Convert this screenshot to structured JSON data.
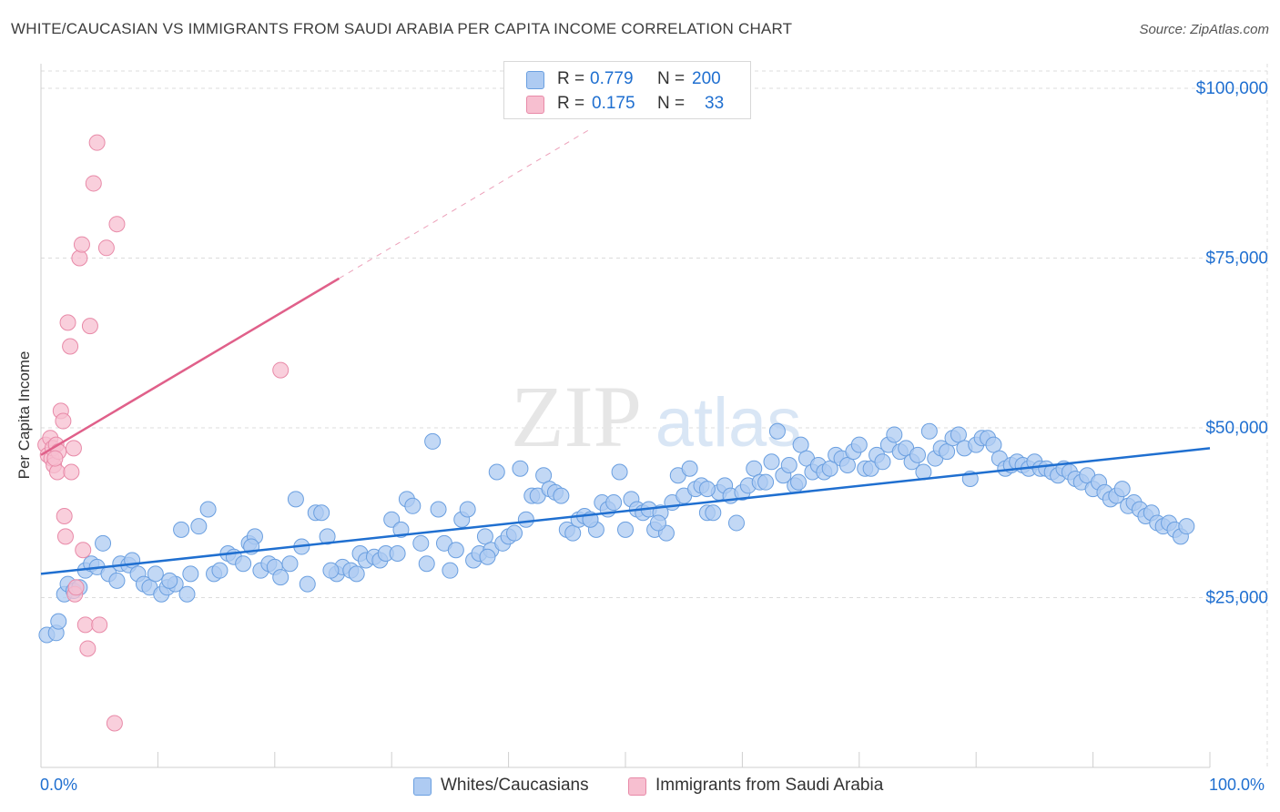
{
  "title": "WHITE/CAUCASIAN VS IMMIGRANTS FROM SAUDI ARABIA PER CAPITA INCOME CORRELATION CHART",
  "source": "Source: ZipAtlas.com",
  "watermark": {
    "zip": "ZIP",
    "atlas": "atlas"
  },
  "legend": {
    "series1": {
      "r_label": "R =",
      "r_value": "0.779",
      "n_label": "N =",
      "n_value": "200"
    },
    "series2": {
      "r_label": "R =",
      "r_value": "0.175",
      "n_label": "N =",
      "n_value": "33"
    }
  },
  "bottom_legend": {
    "series1": "Whites/Caucasians",
    "series2": "Immigrants from Saudi Arabia"
  },
  "colors": {
    "blue_fill": "#aecbf2",
    "blue_stroke": "#6a9fe0",
    "blue_line": "#1f6fd0",
    "pink_fill": "#f7bfd0",
    "pink_stroke": "#e88aa8",
    "pink_line": "#e0608a",
    "axis_text": "#1f6fd0",
    "grid": "#dcdcdc"
  },
  "chart_data": {
    "type": "scatter",
    "title": "WHITE/CAUCASIAN VS IMMIGRANTS FROM SAUDI ARABIA PER CAPITA INCOME CORRELATION CHART",
    "xlabel": "",
    "ylabel": "Per Capita Income",
    "xlim": [
      0,
      100
    ],
    "ylim": [
      0,
      105000
    ],
    "x_tick_labels": [
      "0.0%",
      "100.0%"
    ],
    "y_ticks": [
      25000,
      50000,
      75000,
      100000
    ],
    "y_tick_labels": [
      "$25,000",
      "$50,000",
      "$75,000",
      "$100,000"
    ],
    "grid": true,
    "series": [
      {
        "name": "Whites/Caucasians",
        "color": "#aecbf2",
        "trend": {
          "x0": 0,
          "y0": 28500,
          "x1": 100,
          "y1": 47000
        },
        "points": [
          [
            0.5,
            19500
          ],
          [
            1.3,
            19800
          ],
          [
            1.5,
            21500
          ],
          [
            2.0,
            25500
          ],
          [
            2.3,
            27000
          ],
          [
            2.8,
            26000
          ],
          [
            3.3,
            26500
          ],
          [
            3.8,
            29000
          ],
          [
            4.3,
            30000
          ],
          [
            4.8,
            29500
          ],
          [
            5.3,
            33000
          ],
          [
            5.8,
            28500
          ],
          [
            6.5,
            27500
          ],
          [
            6.8,
            30000
          ],
          [
            7.5,
            29800
          ],
          [
            7.8,
            30500
          ],
          [
            8.3,
            28500
          ],
          [
            8.8,
            27000
          ],
          [
            9.3,
            26500
          ],
          [
            9.8,
            28500
          ],
          [
            10.3,
            25500
          ],
          [
            10.8,
            26500
          ],
          [
            11.5,
            27000
          ],
          [
            12.0,
            35000
          ],
          [
            12.5,
            25500
          ],
          [
            12.8,
            28500
          ],
          [
            13.5,
            35500
          ],
          [
            14.3,
            38000
          ],
          [
            14.8,
            28500
          ],
          [
            15.3,
            29000
          ],
          [
            16.0,
            31500
          ],
          [
            16.5,
            31000
          ],
          [
            17.3,
            30000
          ],
          [
            17.8,
            33000
          ],
          [
            18.3,
            34000
          ],
          [
            18.8,
            29000
          ],
          [
            19.5,
            30000
          ],
          [
            20.0,
            29500
          ],
          [
            20.5,
            28000
          ],
          [
            21.3,
            30000
          ],
          [
            21.8,
            39500
          ],
          [
            22.3,
            32500
          ],
          [
            22.8,
            27000
          ],
          [
            23.5,
            37500
          ],
          [
            24.0,
            37500
          ],
          [
            24.5,
            34000
          ],
          [
            25.3,
            28500
          ],
          [
            25.8,
            29500
          ],
          [
            26.5,
            29000
          ],
          [
            27.0,
            28500
          ],
          [
            27.3,
            31500
          ],
          [
            27.8,
            30500
          ],
          [
            28.5,
            31000
          ],
          [
            29.0,
            30500
          ],
          [
            29.5,
            31500
          ],
          [
            30.0,
            36500
          ],
          [
            30.8,
            35000
          ],
          [
            31.3,
            39500
          ],
          [
            31.8,
            38500
          ],
          [
            32.5,
            33000
          ],
          [
            33.0,
            30000
          ],
          [
            33.5,
            48000
          ],
          [
            34.0,
            38000
          ],
          [
            34.5,
            33000
          ],
          [
            35.0,
            29000
          ],
          [
            35.5,
            32000
          ],
          [
            36.0,
            36500
          ],
          [
            36.5,
            38000
          ],
          [
            37.0,
            30500
          ],
          [
            37.5,
            31500
          ],
          [
            38.0,
            34000
          ],
          [
            38.5,
            32000
          ],
          [
            39.0,
            43500
          ],
          [
            39.5,
            33000
          ],
          [
            40.0,
            34000
          ],
          [
            40.5,
            34500
          ],
          [
            41.0,
            44000
          ],
          [
            41.5,
            36500
          ],
          [
            42.0,
            40000
          ],
          [
            42.5,
            40000
          ],
          [
            43.0,
            43000
          ],
          [
            43.5,
            41000
          ],
          [
            44.0,
            40500
          ],
          [
            44.5,
            40000
          ],
          [
            45.0,
            35000
          ],
          [
            45.5,
            34500
          ],
          [
            46.0,
            36500
          ],
          [
            46.5,
            37000
          ],
          [
            47.0,
            36500
          ],
          [
            47.5,
            35000
          ],
          [
            48.0,
            39000
          ],
          [
            48.5,
            38000
          ],
          [
            49.0,
            39000
          ],
          [
            49.5,
            43500
          ],
          [
            50.0,
            35000
          ],
          [
            50.5,
            39500
          ],
          [
            51.0,
            38000
          ],
          [
            51.5,
            37500
          ],
          [
            52.0,
            38000
          ],
          [
            52.5,
            35000
          ],
          [
            53.0,
            37500
          ],
          [
            53.5,
            34500
          ],
          [
            54.0,
            39000
          ],
          [
            54.5,
            43000
          ],
          [
            55.0,
            40000
          ],
          [
            55.5,
            44000
          ],
          [
            56.0,
            41000
          ],
          [
            56.5,
            41500
          ],
          [
            57.0,
            37500
          ],
          [
            57.5,
            37500
          ],
          [
            58.0,
            40500
          ],
          [
            58.5,
            41500
          ],
          [
            59.0,
            40000
          ],
          [
            59.5,
            36000
          ],
          [
            60.0,
            40500
          ],
          [
            60.5,
            41500
          ],
          [
            61.0,
            44000
          ],
          [
            61.5,
            42000
          ],
          [
            62.0,
            42000
          ],
          [
            62.5,
            45000
          ],
          [
            63.0,
            49500
          ],
          [
            63.5,
            43000
          ],
          [
            64.0,
            44500
          ],
          [
            64.5,
            41500
          ],
          [
            65.0,
            47500
          ],
          [
            65.5,
            45500
          ],
          [
            66.0,
            43500
          ],
          [
            66.5,
            44500
          ],
          [
            67.0,
            43500
          ],
          [
            67.5,
            44000
          ],
          [
            68.0,
            46000
          ],
          [
            68.5,
            45500
          ],
          [
            69.0,
            44500
          ],
          [
            69.5,
            46500
          ],
          [
            70.0,
            47500
          ],
          [
            70.5,
            44000
          ],
          [
            71.0,
            44000
          ],
          [
            71.5,
            46000
          ],
          [
            72.0,
            45000
          ],
          [
            72.5,
            47500
          ],
          [
            73.0,
            49000
          ],
          [
            73.5,
            46500
          ],
          [
            74.0,
            47000
          ],
          [
            74.5,
            45000
          ],
          [
            75.0,
            46000
          ],
          [
            75.5,
            43500
          ],
          [
            76.0,
            49500
          ],
          [
            76.5,
            45500
          ],
          [
            77.0,
            47000
          ],
          [
            77.5,
            46500
          ],
          [
            78.0,
            48500
          ],
          [
            78.5,
            49000
          ],
          [
            79.0,
            47000
          ],
          [
            79.5,
            42500
          ],
          [
            80.0,
            47500
          ],
          [
            80.5,
            48500
          ],
          [
            81.0,
            48500
          ],
          [
            81.5,
            47500
          ],
          [
            82.0,
            45500
          ],
          [
            82.5,
            44000
          ],
          [
            83.0,
            44500
          ],
          [
            83.5,
            45000
          ],
          [
            84.0,
            44500
          ],
          [
            84.5,
            44000
          ],
          [
            85.0,
            45000
          ],
          [
            85.5,
            44000
          ],
          [
            86.0,
            44000
          ],
          [
            86.5,
            43500
          ],
          [
            87.0,
            43000
          ],
          [
            87.5,
            44000
          ],
          [
            88.0,
            43500
          ],
          [
            88.5,
            42500
          ],
          [
            89.0,
            42000
          ],
          [
            89.5,
            43000
          ],
          [
            90.0,
            41000
          ],
          [
            90.5,
            42000
          ],
          [
            91.0,
            40500
          ],
          [
            91.5,
            39500
          ],
          [
            92.0,
            40000
          ],
          [
            92.5,
            41000
          ],
          [
            93.0,
            38500
          ],
          [
            93.5,
            39000
          ],
          [
            94.0,
            38000
          ],
          [
            94.5,
            37000
          ],
          [
            95.0,
            37500
          ],
          [
            95.5,
            36000
          ],
          [
            96.0,
            35500
          ],
          [
            96.5,
            36000
          ],
          [
            97.0,
            35000
          ],
          [
            97.5,
            34000
          ],
          [
            98.0,
            35500
          ],
          [
            57.0,
            41000
          ],
          [
            52.8,
            36000
          ],
          [
            47.0,
            36500
          ],
          [
            38.2,
            31000
          ],
          [
            30.5,
            31500
          ],
          [
            24.8,
            29000
          ],
          [
            18.0,
            32500
          ],
          [
            11.0,
            27500
          ],
          [
            64.8,
            42000
          ]
        ]
      },
      {
        "name": "Immigrants from Saudi Arabia",
        "color": "#f7bfd0",
        "trend": {
          "x0": 0,
          "y0": 46000,
          "x1": 25.5,
          "y1": 72000,
          "dash_x1": 47,
          "dash_y1": 94000
        },
        "points": [
          [
            0.4,
            47500
          ],
          [
            0.6,
            46000
          ],
          [
            0.8,
            48500
          ],
          [
            0.9,
            45500
          ],
          [
            1.0,
            47000
          ],
          [
            1.1,
            44500
          ],
          [
            1.3,
            47500
          ],
          [
            1.4,
            43500
          ],
          [
            1.5,
            46500
          ],
          [
            1.7,
            52500
          ],
          [
            1.9,
            51000
          ],
          [
            2.0,
            37000
          ],
          [
            2.1,
            34000
          ],
          [
            2.3,
            65500
          ],
          [
            2.5,
            62000
          ],
          [
            2.6,
            43500
          ],
          [
            2.8,
            47000
          ],
          [
            2.9,
            25500
          ],
          [
            3.0,
            26500
          ],
          [
            3.3,
            75000
          ],
          [
            3.5,
            77000
          ],
          [
            3.6,
            32000
          ],
          [
            3.8,
            21000
          ],
          [
            4.0,
            17500
          ],
          [
            4.2,
            65000
          ],
          [
            4.5,
            86000
          ],
          [
            4.8,
            92000
          ],
          [
            5.0,
            21000
          ],
          [
            5.6,
            76500
          ],
          [
            6.3,
            6500
          ],
          [
            6.5,
            80000
          ],
          [
            20.5,
            58500
          ],
          [
            1.2,
            45500
          ]
        ]
      }
    ]
  }
}
